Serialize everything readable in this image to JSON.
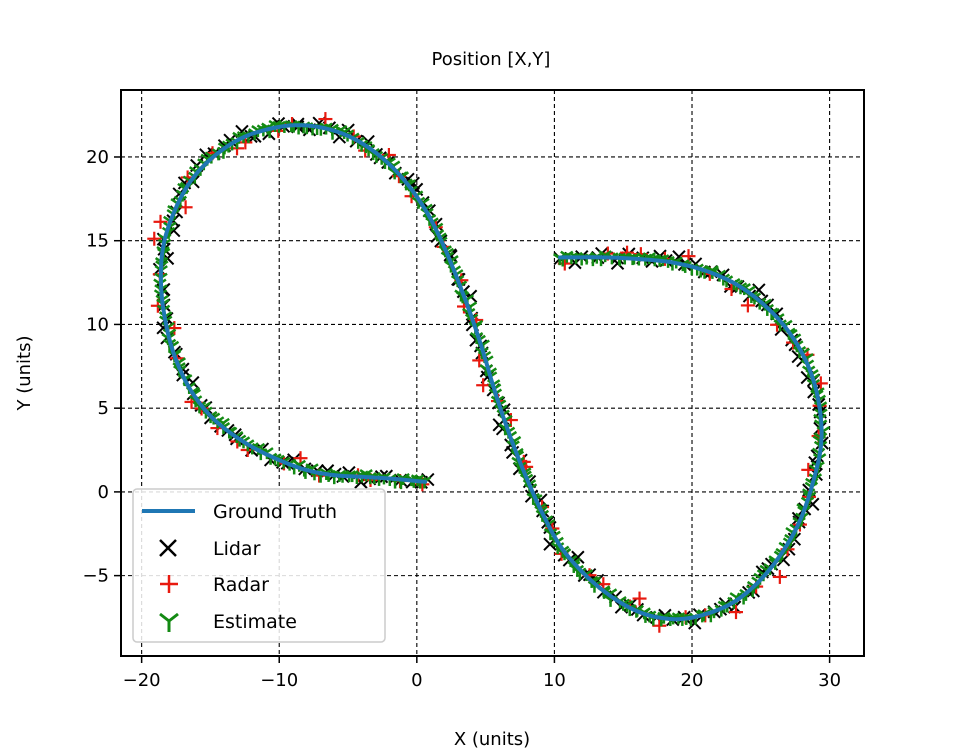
{
  "chart_data": {
    "type": "scatter",
    "title": "Position [X,Y]",
    "xlabel": "X (units)",
    "ylabel": "Y (units)",
    "xlim": [
      -21.5,
      32.5
    ],
    "ylim": [
      -9.8,
      24.0
    ],
    "x_ticks": [
      -20,
      -10,
      0,
      10,
      20,
      30
    ],
    "x_tick_labels": [
      "−20",
      "−10",
      "0",
      "10",
      "20",
      "30"
    ],
    "y_ticks": [
      -5,
      0,
      5,
      10,
      15,
      20
    ],
    "y_tick_labels": [
      "−5",
      "0",
      "5",
      "10",
      "15",
      "20"
    ],
    "grid": true,
    "legend_position": "lower-left",
    "colors": {
      "ground_truth": "#1f77b4",
      "lidar": "#000000",
      "radar": "#e8190f",
      "estimate": "#138a13",
      "grid": "#000000"
    },
    "series": [
      {
        "name": "Ground Truth",
        "marker": "line",
        "points": [
          [
            0.6,
            0.6
          ],
          [
            -2.0,
            0.8
          ],
          [
            -4.0,
            0.9
          ],
          [
            -6.0,
            1.0
          ],
          [
            -8.0,
            1.3
          ],
          [
            -10.0,
            1.9
          ],
          [
            -12.0,
            2.7
          ],
          [
            -14.0,
            3.8
          ],
          [
            -15.5,
            5.0
          ],
          [
            -16.8,
            6.6
          ],
          [
            -17.8,
            8.6
          ],
          [
            -18.4,
            10.8
          ],
          [
            -18.6,
            12.8
          ],
          [
            -18.4,
            14.8
          ],
          [
            -17.6,
            16.8
          ],
          [
            -16.4,
            18.6
          ],
          [
            -14.8,
            20.0
          ],
          [
            -12.8,
            21.1
          ],
          [
            -10.6,
            21.7
          ],
          [
            -8.6,
            21.9
          ],
          [
            -6.6,
            21.7
          ],
          [
            -4.6,
            21.1
          ],
          [
            -2.6,
            20.0
          ],
          [
            -0.8,
            18.5
          ],
          [
            0.8,
            16.6
          ],
          [
            2.0,
            14.6
          ],
          [
            3.0,
            12.6
          ],
          [
            4.0,
            10.4
          ],
          [
            4.8,
            8.4
          ],
          [
            5.6,
            6.2
          ],
          [
            6.4,
            4.2
          ],
          [
            7.2,
            2.4
          ],
          [
            8.2,
            0.4
          ],
          [
            9.2,
            -1.4
          ],
          [
            10.4,
            -3.2
          ],
          [
            11.8,
            -4.6
          ],
          [
            13.4,
            -5.8
          ],
          [
            15.2,
            -6.8
          ],
          [
            17.0,
            -7.4
          ],
          [
            19.0,
            -7.6
          ],
          [
            21.0,
            -7.3
          ],
          [
            23.0,
            -6.6
          ],
          [
            24.8,
            -5.4
          ],
          [
            26.4,
            -3.8
          ],
          [
            27.8,
            -1.8
          ],
          [
            28.8,
            0.6
          ],
          [
            29.4,
            3.0
          ],
          [
            29.2,
            5.4
          ],
          [
            28.4,
            7.6
          ],
          [
            27.0,
            9.6
          ],
          [
            25.2,
            11.2
          ],
          [
            23.2,
            12.4
          ],
          [
            21.0,
            13.2
          ],
          [
            18.6,
            13.7
          ],
          [
            16.2,
            13.9
          ],
          [
            13.8,
            14.0
          ],
          [
            10.4,
            14.0
          ]
        ]
      },
      {
        "name": "Lidar",
        "marker": "x"
      },
      {
        "name": "Radar",
        "marker": "+"
      },
      {
        "name": "Estimate",
        "marker": "tri_down"
      }
    ]
  }
}
